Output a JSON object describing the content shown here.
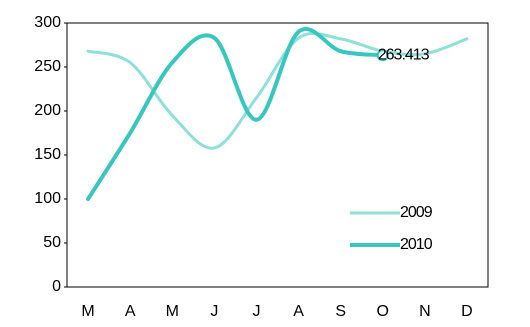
{
  "chart_data": {
    "type": "line",
    "categories": [
      "M",
      "A",
      "M",
      "J",
      "J",
      "A",
      "S",
      "O",
      "N",
      "D"
    ],
    "series": [
      {
        "name": "2009",
        "color": "#8ee0d9",
        "values": [
          268,
          255,
          195,
          158,
          215,
          283,
          282,
          268,
          265,
          282
        ]
      },
      {
        "name": "2010",
        "color": "#38c7c0",
        "values": [
          100,
          175,
          255,
          283,
          190,
          290,
          268,
          263.413,
          null,
          null
        ],
        "value_labels": [
          null,
          null,
          null,
          null,
          null,
          null,
          null,
          "263.413",
          null,
          null
        ]
      }
    ],
    "ylim": [
      0,
      300
    ],
    "yticks": [
      0,
      50,
      100,
      150,
      200,
      250,
      300
    ],
    "legend": "right"
  }
}
